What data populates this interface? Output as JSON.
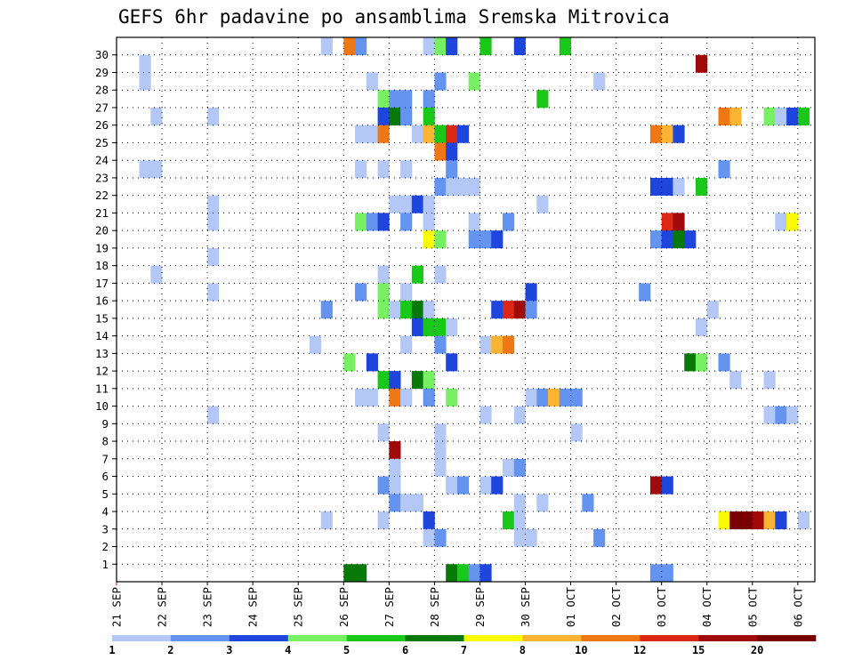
{
  "chart_data": {
    "type": "heatmap",
    "title": "GEFS 6hr padavine po ansamblima Sremska Mitrovica",
    "y_tick_labels": [
      "1",
      "2",
      "3",
      "4",
      "5",
      "6",
      "7",
      "8",
      "9",
      "10",
      "11",
      "12",
      "13",
      "14",
      "15",
      "16",
      "17",
      "18",
      "19",
      "20",
      "21",
      "22",
      "23",
      "24",
      "25",
      "26",
      "27",
      "28",
      "29",
      "30"
    ],
    "x_tick_labels": [
      "21 SEP",
      "22 SEP",
      "23 SEP",
      "24 SEP",
      "25 SEP",
      "26 SEP",
      "27 SEP",
      "28 SEP",
      "29 SEP",
      "30 SEP",
      "01 OCT",
      "02 OCT",
      "03 OCT",
      "04 OCT",
      "05 OCT",
      "06 OCT"
    ],
    "x_steps_total": 61,
    "steps_per_day": 4,
    "grid": true,
    "legend": {
      "placement": "bottom",
      "labels": [
        "1",
        "2",
        "3",
        "4",
        "5",
        "6",
        "7",
        "8",
        "10",
        "12",
        "15",
        "20"
      ],
      "colors": [
        "#b4c8f8",
        "#6494f0",
        "#1e46dc",
        "#78f064",
        "#19c819",
        "#087808",
        "#fafa00",
        "#fab432",
        "#f07814",
        "#dc2814",
        "#a00a0a",
        "#780000"
      ]
    },
    "cells": [
      [
        30,
        18,
        1
      ],
      [
        30,
        20,
        9
      ],
      [
        30,
        21,
        2
      ],
      [
        30,
        27,
        1
      ],
      [
        30,
        28,
        4
      ],
      [
        30,
        29,
        3
      ],
      [
        30,
        32,
        5
      ],
      [
        30,
        35,
        3
      ],
      [
        30,
        39,
        5
      ],
      [
        29,
        2,
        1
      ],
      [
        29,
        51,
        11
      ],
      [
        28,
        2,
        1
      ],
      [
        28,
        22,
        1
      ],
      [
        28,
        28,
        2
      ],
      [
        28,
        31,
        4
      ],
      [
        28,
        42,
        1
      ],
      [
        27,
        23,
        4
      ],
      [
        27,
        24,
        2
      ],
      [
        27,
        25,
        2
      ],
      [
        27,
        27,
        2
      ],
      [
        27,
        37,
        5
      ],
      [
        26,
        3,
        1
      ],
      [
        26,
        8,
        1
      ],
      [
        26,
        23,
        3
      ],
      [
        26,
        24,
        6
      ],
      [
        26,
        25,
        2
      ],
      [
        26,
        27,
        5
      ],
      [
        26,
        53,
        9
      ],
      [
        26,
        54,
        8
      ],
      [
        26,
        57,
        4
      ],
      [
        26,
        58,
        1
      ],
      [
        26,
        59,
        3
      ],
      [
        26,
        60,
        5
      ],
      [
        25,
        21,
        1
      ],
      [
        25,
        22,
        1
      ],
      [
        25,
        23,
        9
      ],
      [
        25,
        26,
        1
      ],
      [
        25,
        27,
        8
      ],
      [
        25,
        28,
        5
      ],
      [
        25,
        29,
        10
      ],
      [
        25,
        30,
        3
      ],
      [
        25,
        47,
        9
      ],
      [
        25,
        48,
        8
      ],
      [
        25,
        49,
        3
      ],
      [
        24,
        28,
        9
      ],
      [
        24,
        29,
        3
      ],
      [
        23,
        2,
        1
      ],
      [
        23,
        3,
        1
      ],
      [
        23,
        21,
        1
      ],
      [
        23,
        23,
        1
      ],
      [
        23,
        25,
        1
      ],
      [
        23,
        29,
        2
      ],
      [
        23,
        53,
        2
      ],
      [
        22,
        28,
        2
      ],
      [
        22,
        29,
        1
      ],
      [
        22,
        30,
        1
      ],
      [
        22,
        31,
        1
      ],
      [
        22,
        47,
        3
      ],
      [
        22,
        48,
        3
      ],
      [
        22,
        49,
        1
      ],
      [
        22,
        51,
        5
      ],
      [
        21,
        8,
        1
      ],
      [
        21,
        24,
        1
      ],
      [
        21,
        25,
        1
      ],
      [
        21,
        26,
        3
      ],
      [
        21,
        27,
        1
      ],
      [
        21,
        37,
        1
      ],
      [
        20,
        8,
        1
      ],
      [
        20,
        21,
        4
      ],
      [
        20,
        22,
        2
      ],
      [
        20,
        23,
        3
      ],
      [
        20,
        25,
        2
      ],
      [
        20,
        27,
        1
      ],
      [
        20,
        31,
        1
      ],
      [
        20,
        34,
        2
      ],
      [
        20,
        48,
        10
      ],
      [
        20,
        49,
        11
      ],
      [
        20,
        58,
        1
      ],
      [
        20,
        59,
        7
      ],
      [
        19,
        27,
        7
      ],
      [
        19,
        28,
        4
      ],
      [
        19,
        31,
        2
      ],
      [
        19,
        32,
        2
      ],
      [
        19,
        33,
        3
      ],
      [
        19,
        47,
        2
      ],
      [
        19,
        48,
        3
      ],
      [
        19,
        49,
        6
      ],
      [
        19,
        50,
        3
      ],
      [
        18,
        8,
        1
      ],
      [
        17,
        3,
        1
      ],
      [
        17,
        23,
        1
      ],
      [
        17,
        26,
        5
      ],
      [
        17,
        28,
        1
      ],
      [
        16,
        8,
        1
      ],
      [
        16,
        21,
        2
      ],
      [
        16,
        23,
        4
      ],
      [
        16,
        25,
        1
      ],
      [
        16,
        36,
        3
      ],
      [
        16,
        46,
        2
      ],
      [
        15,
        18,
        2
      ],
      [
        15,
        23,
        4
      ],
      [
        15,
        24,
        1
      ],
      [
        15,
        25,
        5
      ],
      [
        15,
        26,
        6
      ],
      [
        15,
        27,
        1
      ],
      [
        15,
        33,
        3
      ],
      [
        15,
        34,
        10
      ],
      [
        15,
        35,
        11
      ],
      [
        15,
        36,
        2
      ],
      [
        15,
        52,
        1
      ],
      [
        14,
        26,
        3
      ],
      [
        14,
        27,
        5
      ],
      [
        14,
        28,
        5
      ],
      [
        14,
        29,
        1
      ],
      [
        14,
        51,
        1
      ],
      [
        13,
        17,
        1
      ],
      [
        13,
        25,
        1
      ],
      [
        13,
        28,
        2
      ],
      [
        13,
        32,
        1
      ],
      [
        13,
        33,
        8
      ],
      [
        13,
        34,
        9
      ],
      [
        12,
        20,
        4
      ],
      [
        12,
        22,
        3
      ],
      [
        12,
        29,
        3
      ],
      [
        12,
        50,
        6
      ],
      [
        12,
        51,
        4
      ],
      [
        12,
        53,
        2
      ],
      [
        11,
        23,
        5
      ],
      [
        11,
        24,
        3
      ],
      [
        11,
        26,
        6
      ],
      [
        11,
        27,
        4
      ],
      [
        11,
        54,
        1
      ],
      [
        11,
        57,
        1
      ],
      [
        10,
        21,
        1
      ],
      [
        10,
        22,
        1
      ],
      [
        10,
        24,
        9
      ],
      [
        10,
        25,
        1
      ],
      [
        10,
        27,
        2
      ],
      [
        10,
        29,
        4
      ],
      [
        10,
        36,
        1
      ],
      [
        10,
        37,
        2
      ],
      [
        10,
        38,
        8
      ],
      [
        10,
        39,
        2
      ],
      [
        10,
        40,
        2
      ],
      [
        9,
        8,
        1
      ],
      [
        9,
        32,
        1
      ],
      [
        9,
        35,
        1
      ],
      [
        9,
        57,
        1
      ],
      [
        9,
        58,
        2
      ],
      [
        9,
        59,
        1
      ],
      [
        8,
        23,
        1
      ],
      [
        8,
        28,
        1
      ],
      [
        8,
        40,
        1
      ],
      [
        7,
        24,
        11
      ],
      [
        7,
        28,
        1
      ],
      [
        6,
        24,
        1
      ],
      [
        6,
        28,
        1
      ],
      [
        6,
        34,
        1
      ],
      [
        6,
        35,
        2
      ],
      [
        5,
        23,
        2
      ],
      [
        5,
        24,
        1
      ],
      [
        5,
        29,
        1
      ],
      [
        5,
        30,
        2
      ],
      [
        5,
        32,
        1
      ],
      [
        5,
        33,
        3
      ],
      [
        5,
        47,
        11
      ],
      [
        5,
        48,
        3
      ],
      [
        4,
        24,
        2
      ],
      [
        4,
        25,
        1
      ],
      [
        4,
        26,
        1
      ],
      [
        4,
        35,
        1
      ],
      [
        4,
        37,
        1
      ],
      [
        4,
        41,
        2
      ],
      [
        3,
        18,
        1
      ],
      [
        3,
        23,
        1
      ],
      [
        3,
        27,
        3
      ],
      [
        3,
        34,
        5
      ],
      [
        3,
        35,
        1
      ],
      [
        3,
        53,
        7
      ],
      [
        3,
        54,
        12
      ],
      [
        3,
        55,
        12
      ],
      [
        3,
        56,
        11
      ],
      [
        3,
        57,
        8
      ],
      [
        3,
        58,
        3
      ],
      [
        3,
        60,
        1
      ],
      [
        2,
        27,
        1
      ],
      [
        2,
        28,
        2
      ],
      [
        2,
        35,
        1
      ],
      [
        2,
        36,
        1
      ],
      [
        2,
        42,
        2
      ],
      [
        0,
        20,
        6
      ],
      [
        0,
        21,
        6
      ],
      [
        0,
        29,
        6
      ],
      [
        0,
        30,
        5
      ],
      [
        0,
        31,
        2
      ],
      [
        0,
        32,
        3
      ],
      [
        0,
        47,
        2
      ],
      [
        0,
        48,
        2
      ]
    ]
  }
}
